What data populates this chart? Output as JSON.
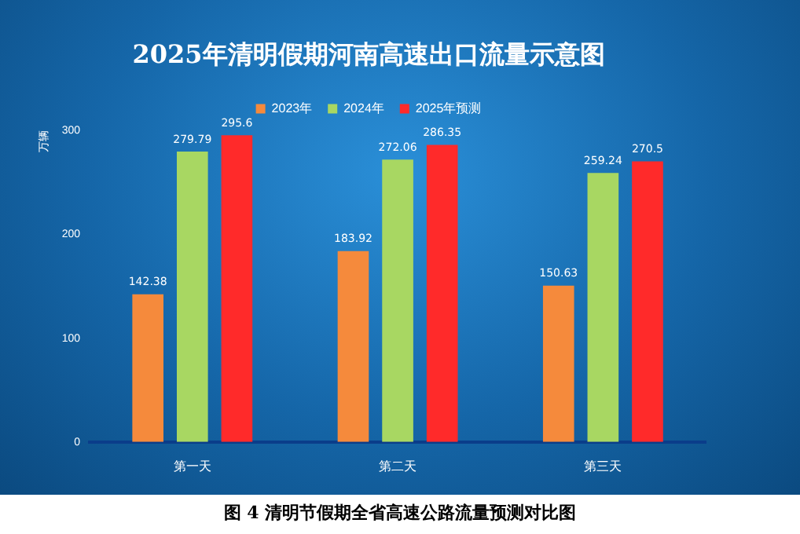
{
  "chart_data": {
    "type": "bar",
    "title": "2025年清明假期河南高速出口流量示意图",
    "ylabel": "万辆",
    "categories": [
      "第一天",
      "第二天",
      "第三天"
    ],
    "series": [
      {
        "name": "2023年",
        "color": "#f58a3c",
        "values": [
          142.38,
          183.92,
          150.63
        ]
      },
      {
        "name": "2024年",
        "color": "#a8d762",
        "values": [
          279.79,
          272.06,
          259.24
        ]
      },
      {
        "name": "2025年预测",
        "color": "#ff2a2a",
        "values": [
          295.6,
          286.35,
          270.5
        ]
      }
    ],
    "ylim": [
      0,
      300
    ],
    "yticks": [
      0,
      100,
      200,
      300
    ],
    "grid": false,
    "legend": "top",
    "data_labels": true,
    "annotations": [
      "图 4 清明节假期全省高速公路流量预测对比图"
    ]
  }
}
